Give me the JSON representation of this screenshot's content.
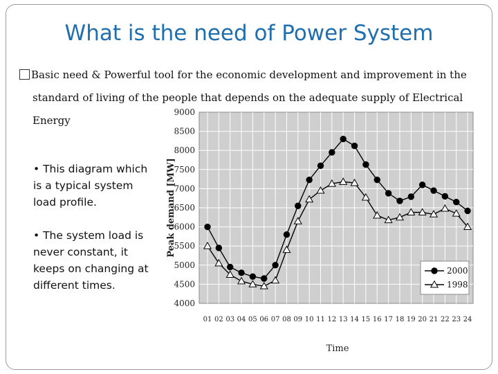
{
  "slide": {
    "title": "What is the need of Power System",
    "bullet_symbol": "�",
    "bullet_line1": "Basic need & Powerful tool for the economic development and improvement in the",
    "bullet_line2": "standard of living of the people that depends on the adequate supply of Electrical",
    "bullet_line3": "Energy",
    "point1": "• This diagram which is a typical system load profile.",
    "point2": "• The system load is never constant, it keeps on changing at different times."
  },
  "chart_data": {
    "type": "line",
    "xlabel": "Time",
    "ylabel": "Peak demand [MW]",
    "x": [
      "01",
      "02",
      "03",
      "04",
      "05",
      "06",
      "07",
      "08",
      "09",
      "10",
      "11",
      "12",
      "13",
      "14",
      "15",
      "16",
      "17",
      "18",
      "19",
      "20",
      "21",
      "22",
      "23",
      "24"
    ],
    "ylim": [
      4000,
      9000
    ],
    "yticks": [
      4000,
      4500,
      5000,
      5500,
      6000,
      6500,
      7000,
      7500,
      8000,
      8500,
      9000
    ],
    "grid": true,
    "legend_position": "bottom-right",
    "series": [
      {
        "name": "2000",
        "marker": "circle",
        "color": "#000000",
        "values": [
          6000,
          5450,
          4950,
          4800,
          4700,
          4650,
          5000,
          5800,
          6550,
          7230,
          7600,
          7950,
          8300,
          8120,
          7630,
          7230,
          6880,
          6680,
          6790,
          7100,
          6950,
          6800,
          6650,
          6420
        ]
      },
      {
        "name": "1998",
        "marker": "triangle",
        "color": "#000000",
        "values": [
          5500,
          5050,
          4750,
          4580,
          4500,
          4450,
          4600,
          5400,
          6150,
          6720,
          6950,
          7130,
          7180,
          7150,
          6770,
          6300,
          6180,
          6250,
          6380,
          6380,
          6330,
          6480,
          6350,
          6000
        ]
      }
    ]
  }
}
